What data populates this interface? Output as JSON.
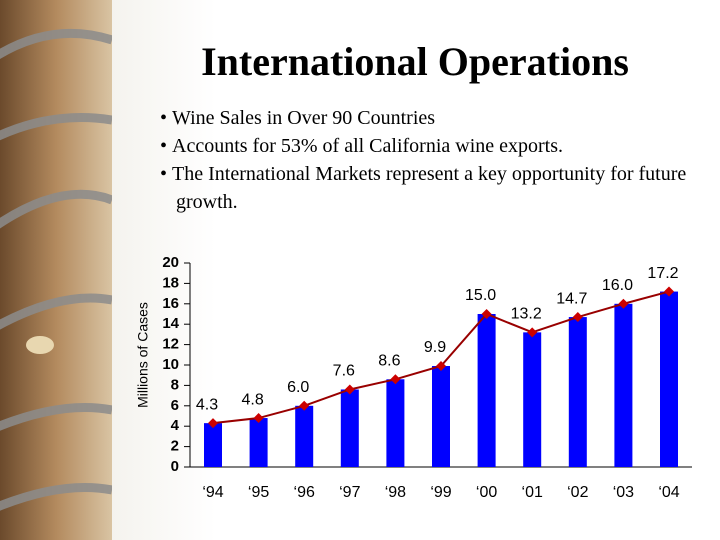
{
  "title": "International Operations",
  "bullets": [
    "Wine Sales in Over 90 Countries",
    "Accounts for 53% of all California wine exports.",
    "The International Markets represent a key opportunity for future growth."
  ],
  "chart_data": {
    "type": "bar",
    "y_label": "Millions of Cases",
    "categories": [
      "‘94",
      "‘95",
      "‘96",
      "‘97",
      "‘98",
      "‘99",
      "‘00",
      "‘01",
      "‘02",
      "‘03",
      "‘04"
    ],
    "values": [
      4.3,
      4.8,
      6.0,
      7.6,
      8.6,
      9.9,
      15.0,
      13.2,
      14.7,
      16.0,
      17.2
    ],
    "value_labels": [
      "4.3",
      "4.8",
      "6.0",
      "7.6",
      "8.6",
      "9.9",
      "15.0",
      "13.2",
      "14.7",
      "16.0",
      "17.2"
    ],
    "color": "#0000ff",
    "line_color": "#990000",
    "marker_color": "#cc0000",
    "ylim": [
      0,
      20
    ],
    "yticks": [
      0,
      2,
      4,
      6,
      8,
      10,
      12,
      14,
      16,
      18,
      20
    ]
  }
}
